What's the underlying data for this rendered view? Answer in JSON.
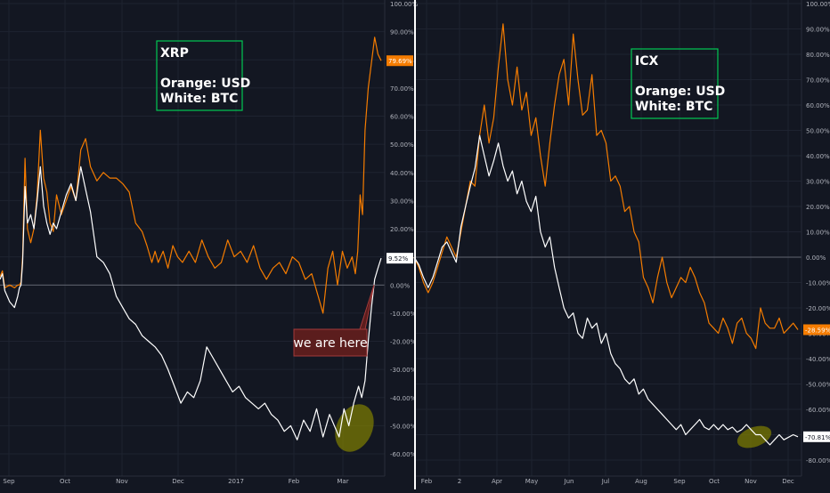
{
  "colors": {
    "background": "#131722",
    "usd": "#f57c00",
    "btc": "#ffffff",
    "grid": "#1e2330",
    "axis_text": "#b2b5be",
    "zero_line": "#787b86",
    "legend_border": "#00c853",
    "callout_fill": "#5b1d1d",
    "callout_border": "#a33a3a",
    "highlight": "#808000",
    "divider": "#2a2e39"
  },
  "chart_data": [
    {
      "type": "line",
      "panel": "left",
      "legend_box": [
        "XRP",
        "",
        "Orange: USD",
        "White: BTC"
      ],
      "x_ticks": [
        "Sep",
        "Oct",
        "Nov",
        "Dec",
        "2017",
        "Feb",
        "Mar"
      ],
      "y_ticks": [
        "100.00%",
        "90.00%",
        "80.00%",
        "70.00%",
        "60.00%",
        "50.00%",
        "40.00%",
        "30.00%",
        "20.00%",
        "10.00%",
        "0.00%",
        "-10.00%",
        "-20.00%",
        "-30.00%",
        "-40.00%",
        "-50.00%",
        "-60.00%"
      ],
      "ylim": [
        -60,
        100
      ],
      "last_values": {
        "usd": "79.69%",
        "btc": "9.52%"
      },
      "annotation": "we are here",
      "series": [
        {
          "key": "usd",
          "x": [
            0,
            1.5,
            3,
            6,
            9,
            11,
            12,
            13,
            14,
            15.5,
            17,
            19,
            21,
            23,
            25,
            27,
            29,
            31,
            33,
            35,
            38,
            41,
            44,
            47,
            50,
            53,
            56,
            60,
            64,
            68,
            72,
            76,
            80,
            84,
            88,
            91,
            94,
            96,
            98,
            101,
            104,
            107,
            110,
            113,
            117,
            121,
            125,
            129,
            133,
            137,
            141,
            145,
            149,
            153,
            157,
            161,
            165,
            169,
            173,
            177,
            181,
            185,
            189,
            193,
            197,
            200,
            203,
            206,
            209,
            212,
            215,
            218,
            220,
            221.5,
            223,
            224.5,
            226,
            228,
            230,
            232,
            234,
            236
          ],
          "y": [
            3,
            5,
            -1,
            0,
            -1,
            0,
            0,
            1,
            10,
            45,
            20,
            15,
            20,
            32,
            55,
            38,
            33,
            22,
            19,
            32,
            25,
            30,
            35,
            30,
            48,
            52,
            42,
            37,
            40,
            38,
            38,
            36,
            33,
            22,
            19,
            14,
            8,
            12,
            8,
            12,
            6,
            14,
            10,
            8,
            12,
            8,
            16,
            10,
            6,
            8,
            16,
            10,
            12,
            8,
            14,
            6,
            2,
            6,
            8,
            4,
            10,
            8,
            2,
            4,
            -4,
            -10,
            6,
            12,
            0,
            12,
            6,
            10,
            4,
            12,
            32,
            25,
            55,
            70,
            79,
            88,
            82,
            79.69
          ]
        },
        {
          "key": "btc",
          "x": [
            0,
            1.5,
            3,
            6,
            9,
            11,
            12,
            13,
            14,
            15.5,
            17,
            19,
            21,
            23,
            25,
            27,
            29,
            31,
            33,
            35,
            38,
            41,
            44,
            47,
            50,
            53,
            56,
            60,
            64,
            68,
            72,
            76,
            80,
            84,
            88,
            92,
            96,
            100,
            104,
            108,
            112,
            116,
            120,
            124,
            128,
            132,
            136,
            140,
            144,
            148,
            152,
            156,
            160,
            164,
            168,
            172,
            176,
            180,
            184,
            188,
            192,
            196,
            200,
            204,
            207,
            210,
            213,
            216,
            219,
            222,
            224,
            226,
            228,
            230,
            232,
            234,
            236
          ],
          "y": [
            2,
            4,
            -2,
            -6,
            -8,
            -4,
            -1,
            0,
            8,
            35,
            22,
            25,
            20,
            30,
            42,
            28,
            22,
            18,
            22,
            20,
            26,
            32,
            36,
            30,
            42,
            34,
            26,
            10,
            8,
            4,
            -4,
            -8,
            -12,
            -14,
            -18,
            -20,
            -22,
            -25,
            -30,
            -36,
            -42,
            -38,
            -40,
            -34,
            -22,
            -26,
            -30,
            -34,
            -38,
            -36,
            -40,
            -42,
            -44,
            -42,
            -46,
            -48,
            -52,
            -50,
            -55,
            -48,
            -52,
            -44,
            -54,
            -46,
            -50,
            -54,
            -44,
            -50,
            -42,
            -36,
            -40,
            -34,
            -20,
            -8,
            2,
            6,
            9.52
          ]
        }
      ]
    },
    {
      "type": "line",
      "panel": "right",
      "legend_box": [
        "ICX",
        "",
        "Orange: USD",
        "White: BTC"
      ],
      "x_ticks": [
        "Feb",
        "2",
        "Apr",
        "May",
        "Jun",
        "Jul",
        "Aug",
        "Sep",
        "Oct",
        "Nov",
        "Dec"
      ],
      "y_ticks": [
        "100.00%",
        "90.00%",
        "80.00%",
        "70.00%",
        "60.00%",
        "50.00%",
        "40.00%",
        "30.00%",
        "20.00%",
        "10.00%",
        "0.00%",
        "-10.00%",
        "-20.00%",
        "-30.00%",
        "-40.00%",
        "-50.00%",
        "-60.00%",
        "-70.00%",
        "-80.00%"
      ],
      "ylim": [
        -80,
        100
      ],
      "last_values": {
        "usd": "-28.59%",
        "btc": "-70.81%"
      },
      "series": [
        {
          "key": "usd",
          "x": [
            0,
            3,
            6,
            9,
            12,
            15,
            18,
            21,
            24,
            27,
            30,
            33,
            36,
            39,
            42,
            45,
            48,
            51,
            54,
            57,
            60,
            63,
            66,
            69,
            72,
            75,
            78,
            81,
            84,
            87,
            90,
            93,
            96,
            99,
            102,
            105,
            108,
            111,
            114,
            117,
            120,
            123,
            126,
            129,
            132,
            135,
            138,
            141,
            144,
            147,
            150,
            153,
            156,
            159,
            162,
            165,
            168,
            171,
            174,
            177,
            180,
            183,
            186,
            189,
            192,
            195,
            198,
            201,
            204,
            207,
            210,
            213,
            216,
            219,
            222,
            225,
            228,
            231,
            234,
            237,
            240,
            243,
            246
          ],
          "y": [
            0,
            -4,
            -10,
            -14,
            -10,
            -4,
            2,
            8,
            4,
            0,
            10,
            20,
            30,
            28,
            48,
            60,
            45,
            55,
            75,
            92,
            70,
            60,
            75,
            58,
            65,
            48,
            55,
            40,
            28,
            45,
            60,
            72,
            78,
            60,
            88,
            70,
            56,
            58,
            72,
            48,
            50,
            45,
            30,
            32,
            28,
            18,
            20,
            10,
            6,
            -8,
            -12,
            -18,
            -8,
            0,
            -10,
            -16,
            -12,
            -8,
            -10,
            -4,
            -8,
            -14,
            -18,
            -26,
            -28,
            -30,
            -24,
            -28,
            -34,
            -26,
            -24,
            -30,
            -32,
            -36,
            -20,
            -26,
            -28,
            -28,
            -24,
            -30,
            -28,
            -26,
            -28.59
          ]
        },
        {
          "key": "btc",
          "x": [
            0,
            3,
            6,
            9,
            12,
            15,
            18,
            21,
            24,
            27,
            30,
            33,
            36,
            39,
            42,
            45,
            48,
            51,
            54,
            57,
            60,
            63,
            66,
            69,
            72,
            75,
            78,
            81,
            84,
            87,
            90,
            93,
            96,
            99,
            102,
            105,
            108,
            111,
            114,
            117,
            120,
            123,
            126,
            129,
            132,
            135,
            138,
            141,
            144,
            147,
            150,
            153,
            156,
            159,
            162,
            165,
            168,
            171,
            174,
            177,
            180,
            183,
            186,
            189,
            192,
            195,
            198,
            201,
            204,
            207,
            210,
            213,
            216,
            219,
            222,
            225,
            228,
            231,
            234,
            237,
            240,
            243,
            246
          ],
          "y": [
            0,
            -3,
            -8,
            -12,
            -8,
            -2,
            4,
            6,
            2,
            -2,
            12,
            20,
            28,
            35,
            48,
            40,
            32,
            38,
            45,
            36,
            30,
            34,
            25,
            30,
            22,
            18,
            24,
            10,
            4,
            8,
            -4,
            -12,
            -20,
            -24,
            -22,
            -30,
            -32,
            -24,
            -28,
            -26,
            -34,
            -30,
            -38,
            -42,
            -44,
            -48,
            -50,
            -48,
            -54,
            -52,
            -56,
            -58,
            -60,
            -62,
            -64,
            -66,
            -68,
            -66,
            -70,
            -68,
            -66,
            -64,
            -67,
            -68,
            -66,
            -68,
            -66,
            -68,
            -67,
            -69,
            -68,
            -66,
            -68,
            -70,
            -70,
            -72,
            -74,
            -72,
            -70,
            -72,
            -71,
            -70,
            -70.81
          ]
        }
      ]
    }
  ]
}
